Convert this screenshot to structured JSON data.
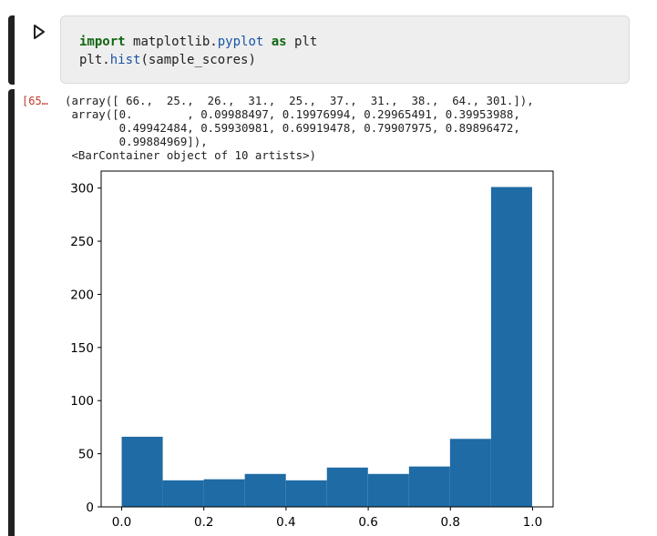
{
  "cell": {
    "run_icon": "play-icon",
    "code": {
      "line1": {
        "kw_import": "import",
        "module_base": "matplotlib.",
        "module_sub": "pyplot",
        "kw_as": "as",
        "alias": "plt"
      },
      "line2": {
        "obj": "plt.",
        "func": "hist",
        "args": "(sample_scores)"
      }
    },
    "execution_count": "[65…",
    "output_lines": [
      "(array([ 66.,  25.,  26.,  31.,  25.,  37.,  31.,  38.,  64., 301.]),",
      " array([0.        , 0.09988497, 0.19976994, 0.29965491, 0.39953988,",
      "        0.49942484, 0.59930981, 0.69919478, 0.79907975, 0.89896472,",
      "        0.99884969]),",
      " <BarContainer object of 10 artists>)"
    ]
  },
  "colors": {
    "bar": "#1f6ba5",
    "exec_count": "#c0392b"
  },
  "chart_data": {
    "type": "bar",
    "bin_edges": [
      0.0,
      0.09988497,
      0.19976994,
      0.29965491,
      0.39953988,
      0.49942484,
      0.59930981,
      0.69919478,
      0.79907975,
      0.89896472,
      0.99884969
    ],
    "values": [
      66,
      25,
      26,
      31,
      25,
      37,
      31,
      38,
      64,
      301
    ],
    "xlim": [
      -0.05,
      1.05
    ],
    "ylim": [
      0,
      316
    ],
    "xticks": [
      0.0,
      0.2,
      0.4,
      0.6,
      0.8,
      1.0
    ],
    "xtick_labels": [
      "0.0",
      "0.2",
      "0.4",
      "0.6",
      "0.8",
      "1.0"
    ],
    "yticks": [
      0,
      50,
      100,
      150,
      200,
      250,
      300
    ],
    "ytick_labels": [
      "0",
      "50",
      "100",
      "150",
      "200",
      "250",
      "300"
    ],
    "grid": false
  }
}
